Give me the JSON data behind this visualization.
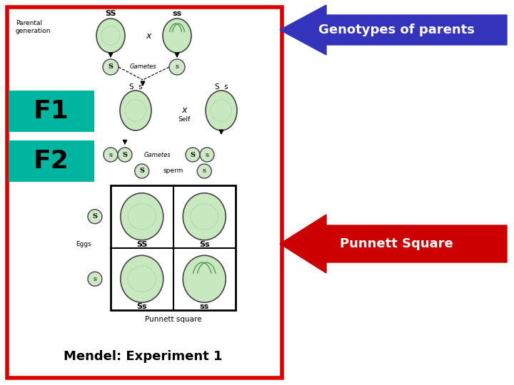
{
  "bg_color": "#ffffff",
  "border_color": "#dd0000",
  "box_bg": "#ffffff",
  "f1_label": "F1",
  "f2_label": "F2",
  "f1_box_color": "#00b5a0",
  "f2_box_color": "#00b5a0",
  "top_arrow_color": "#3333bb",
  "right_arrow_color": "#cc0000",
  "top_arrow_label": "Genotypes of parents",
  "right_arrow_label": "Punnett Square",
  "bottom_label": "Mendel: Experiment 1",
  "pea_fill": "#c8e8c0",
  "pea_edge": "#444444",
  "gamete_fill": "#d0e8c8",
  "gamete_edge": "#444444"
}
